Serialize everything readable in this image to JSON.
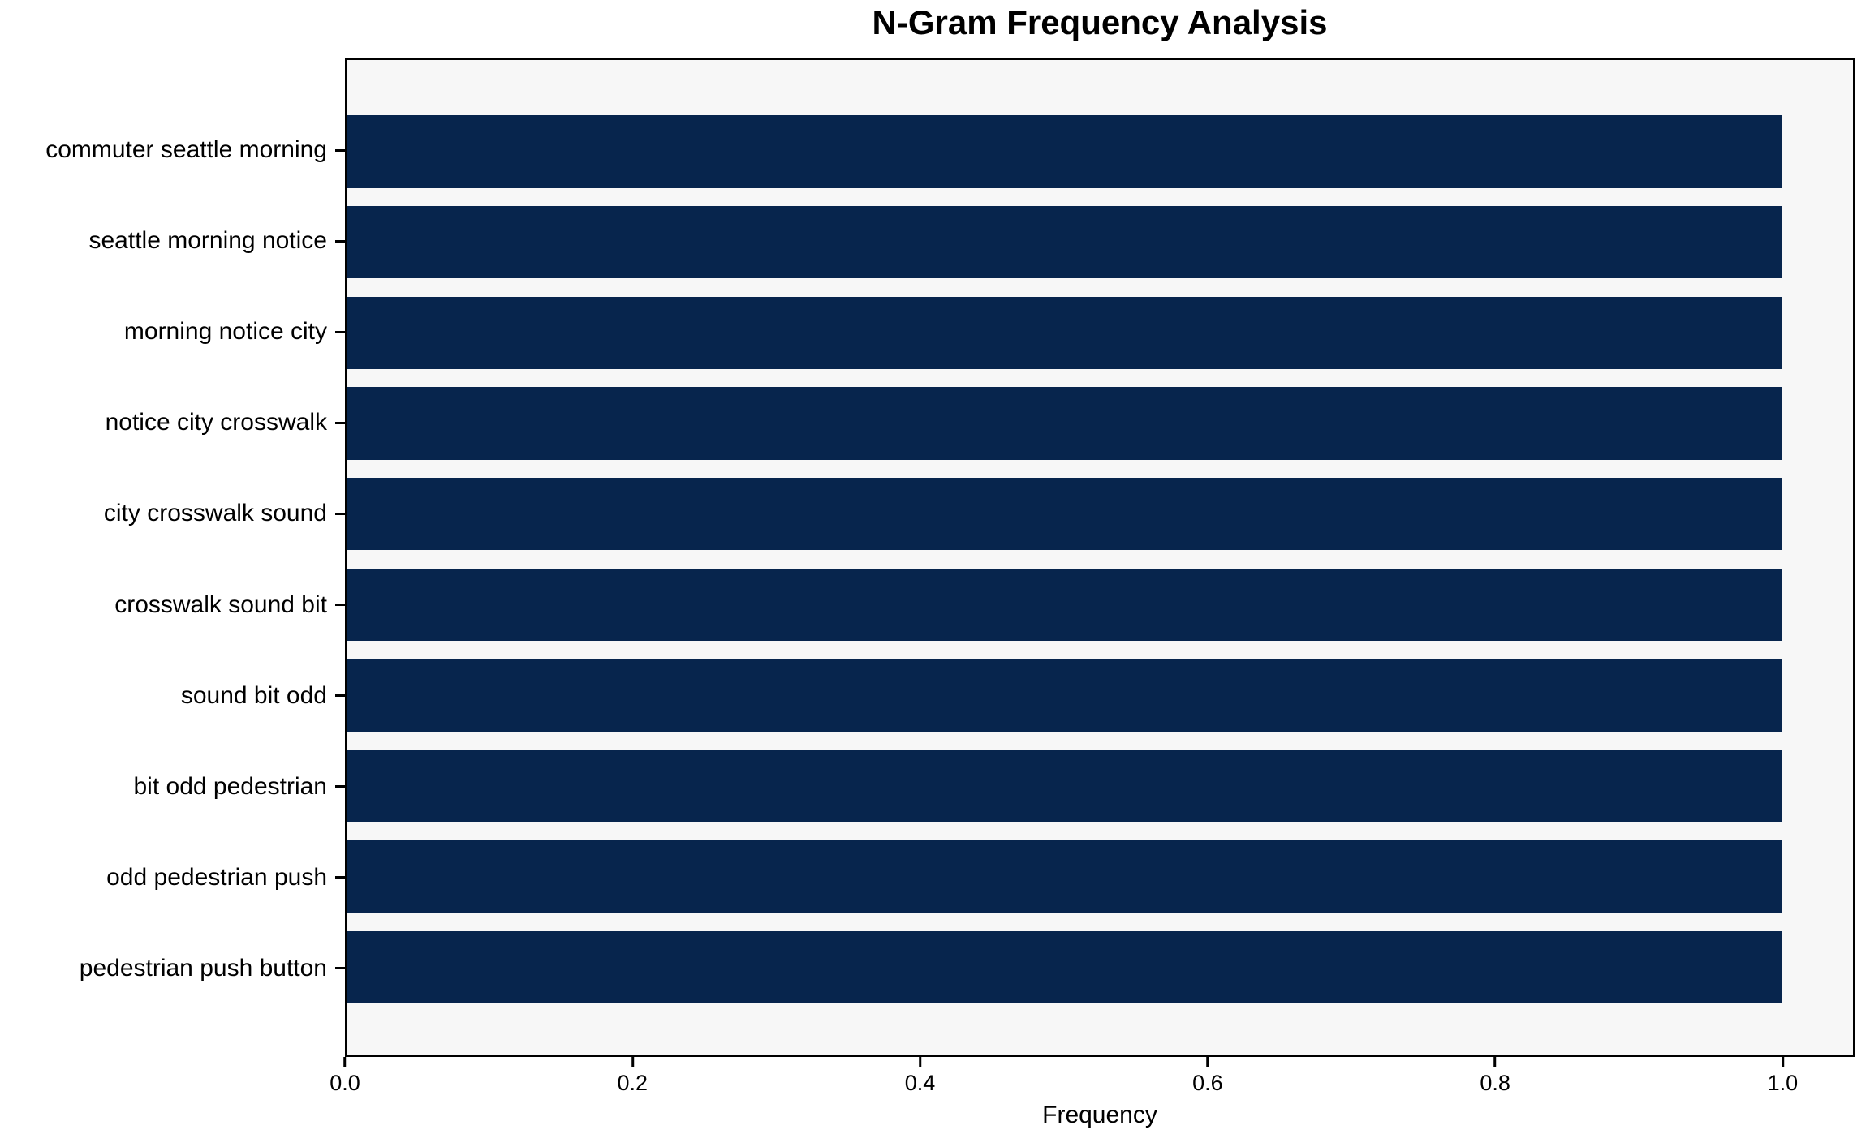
{
  "chart_data": {
    "type": "bar",
    "orientation": "horizontal",
    "title": "N-Gram Frequency Analysis",
    "xlabel": "Frequency",
    "ylabel": "",
    "categories": [
      "commuter seattle morning",
      "seattle morning notice",
      "morning notice city",
      "notice city crosswalk",
      "city crosswalk sound",
      "crosswalk sound bit",
      "sound bit odd",
      "bit odd pedestrian",
      "odd pedestrian push",
      "pedestrian push button"
    ],
    "values": [
      1.0,
      1.0,
      1.0,
      1.0,
      1.0,
      1.0,
      1.0,
      1.0,
      1.0,
      1.0
    ],
    "xlim": [
      0,
      1.05
    ],
    "xticks": [
      0.0,
      0.2,
      0.4,
      0.6,
      0.8,
      1.0
    ],
    "grid": false,
    "legend": "none",
    "bar_color": "#07254d",
    "plot_background": "#f7f7f7",
    "figure_background": "#ffffff",
    "axis_frame_color": "#000000"
  }
}
